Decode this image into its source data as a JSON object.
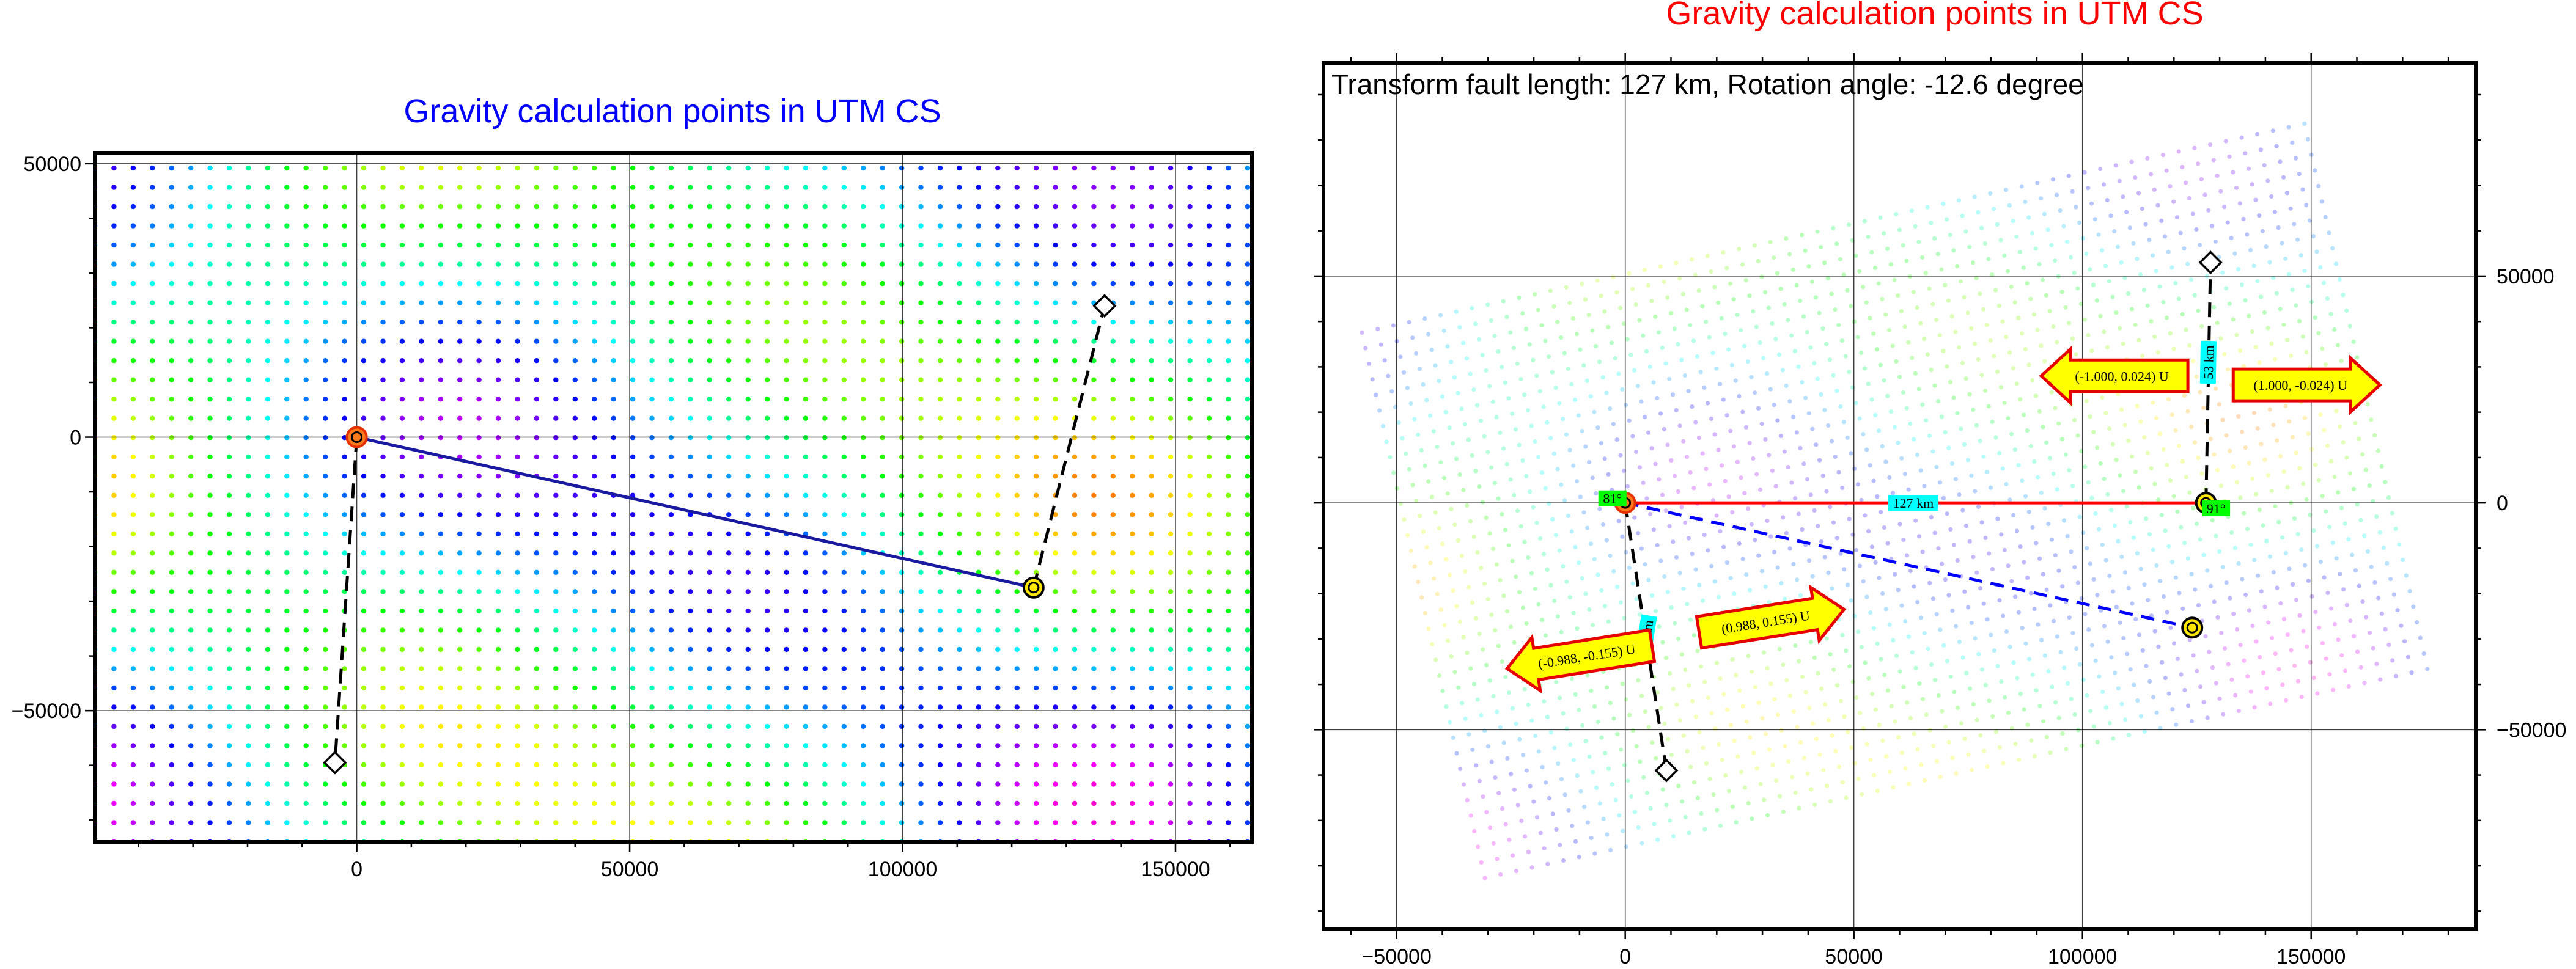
{
  "chart_data": [
    {
      "type": "scatter",
      "title": "Gravity calculation points in UTM CS",
      "title_color": "#0000ff",
      "xlim": [
        -48000,
        164000
      ],
      "ylim": [
        -74000,
        52000
      ],
      "xticks": [
        0,
        50000,
        100000,
        150000
      ],
      "yticks": [
        -50000,
        0,
        50000
      ],
      "tick_labels_x": [
        "0",
        "50000",
        "100000",
        "150000"
      ],
      "tick_labels_y": [
        "−50000",
        "0",
        "50000"
      ],
      "grid": true,
      "point_grid_spacing": 1600,
      "points_opacity": 1,
      "fault_line": {
        "x": [
          0,
          124000
        ],
        "y": [
          0,
          -27500
        ],
        "color": "#1a1aa0",
        "style": "solid"
      },
      "end_markers": [
        {
          "x": 0,
          "y": 0,
          "style": "orange-ring"
        },
        {
          "x": 124000,
          "y": -27500,
          "style": "yellow-ring"
        }
      ],
      "dashed_lines": [
        {
          "x": [
            0,
            -4000
          ],
          "y": [
            0,
            -59500
          ]
        },
        {
          "x": [
            124000,
            137000
          ],
          "y": [
            -27500,
            24000
          ]
        }
      ],
      "diamonds": [
        {
          "x": -4000,
          "y": -59500
        },
        {
          "x": 137000,
          "y": 24000
        }
      ]
    },
    {
      "type": "scatter",
      "title": "Gravity calculation points in UTM CS",
      "title_color": "#ff0000",
      "annotation": "Transform fault length: 127 km,  Rotation angle: -12.6 degree",
      "xlim": [
        -66000,
        186000
      ],
      "ylim": [
        -94000,
        97000
      ],
      "xticks": [
        -50000,
        0,
        50000,
        100000,
        150000
      ],
      "yticks": [
        -50000,
        0,
        50000
      ],
      "tick_labels_x": [
        "−50000",
        "0",
        "50000",
        "100000",
        "150000"
      ],
      "tick_labels_y": [
        "−50000",
        "0",
        "50000"
      ],
      "grid": true,
      "rotation_deg": -12.6,
      "point_grid_spacing": 1600,
      "points_opacity": 0.28,
      "fault_line": {
        "x": [
          0,
          127000
        ],
        "y": [
          0,
          0
        ],
        "color": "#ff0000",
        "style": "solid"
      },
      "original_line": {
        "x": [
          0,
          124000
        ],
        "y": [
          0,
          -27500
        ],
        "color": "#0000ff",
        "style": "dashed"
      },
      "end_markers": [
        {
          "x": 0,
          "y": 0,
          "style": "orange-ring"
        },
        {
          "x": 127000,
          "y": 0,
          "style": "yellow-ring"
        },
        {
          "x": 124000,
          "y": -27500,
          "style": "yellow-ring"
        }
      ],
      "dashed_lines": [
        {
          "x": [
            0,
            9000
          ],
          "y": [
            0,
            -59000
          ]
        },
        {
          "x": [
            127000,
            128000
          ],
          "y": [
            0,
            53000
          ]
        }
      ],
      "diamonds": [
        {
          "x": 9000,
          "y": -59000
        },
        {
          "x": 128000,
          "y": 53000
        }
      ],
      "labels": [
        {
          "text": "127 km",
          "x": 63000,
          "y": 0,
          "color": "#00ffff",
          "rotate": 0
        },
        {
          "text": "60 km",
          "x": 4500,
          "y": -29500,
          "color": "#00ffff",
          "rotate": -81
        },
        {
          "text": "53 km",
          "x": 127500,
          "y": 31000,
          "color": "#00ffff",
          "rotate": -89
        },
        {
          "text": "81°",
          "x": -2800,
          "y": 1000,
          "color": "#00ff00",
          "rotate": 0
        },
        {
          "text": "91°",
          "x": 129200,
          "y": -1200,
          "color": "#00ff00",
          "rotate": 0
        }
      ],
      "arrows": [
        {
          "text": "(-1.000, 0.024) U",
          "x": 107000,
          "y": 28000,
          "dir": "left",
          "angle": 0
        },
        {
          "text": "(1.000, -0.024) U",
          "x": 149000,
          "y": 26000,
          "dir": "right",
          "angle": 0
        },
        {
          "text": "(-0.988, -0.155) U",
          "x": -10000,
          "y": -34000,
          "dir": "left",
          "angle": -9
        },
        {
          "text": "(0.988, 0.155) U",
          "x": 32000,
          "y": -26000,
          "dir": "right",
          "angle": -9
        }
      ]
    }
  ]
}
